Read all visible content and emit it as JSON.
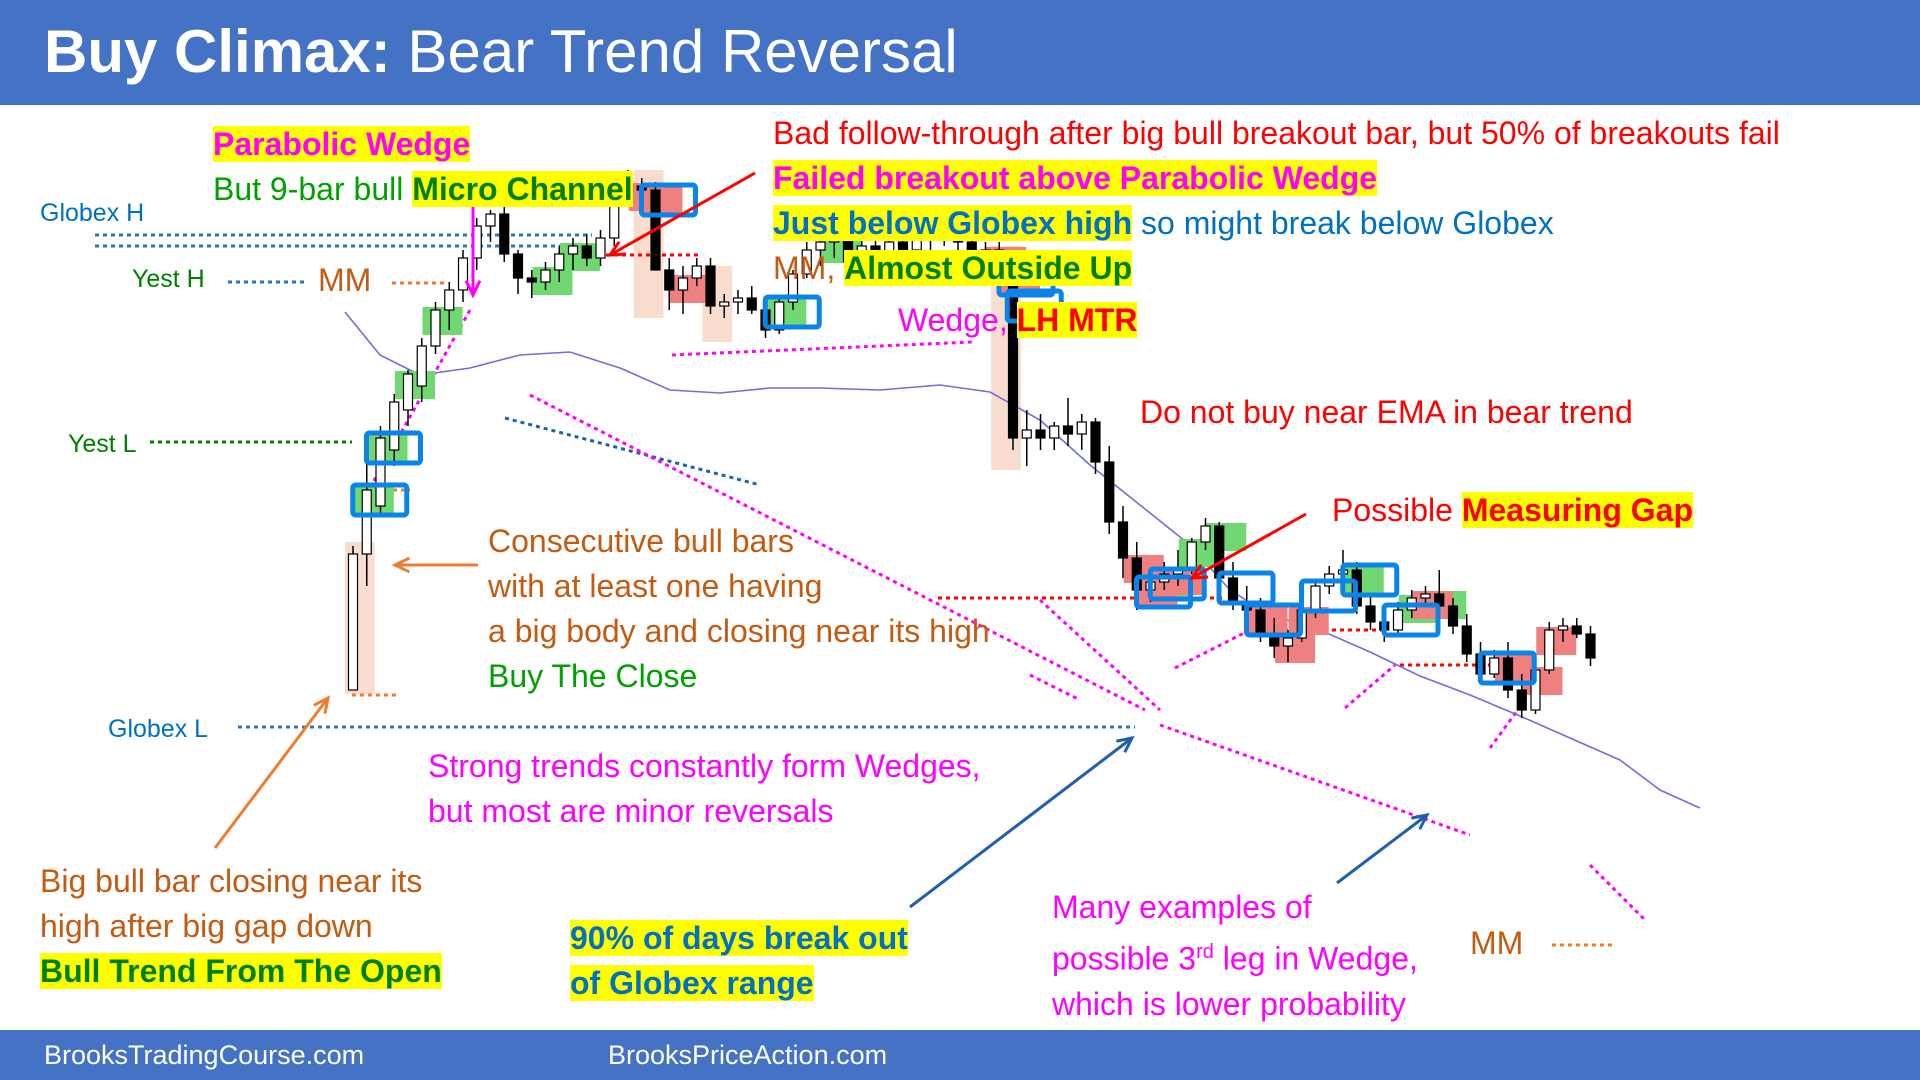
{
  "header": {
    "title_bold": "Buy Climax:",
    "title_rest": " Bear Trend Reversal"
  },
  "footer": {
    "left": "BrooksTradingCourse.com",
    "right": "BrooksPriceAction.com"
  },
  "levels": {
    "globex_h": "Globex H",
    "yest_h": "Yest H",
    "yest_l": "Yest L",
    "globex_l": "Globex L",
    "mm_top": "MM",
    "mm_bottom": "MM"
  },
  "annotations": {
    "parabolic_wedge": "Parabolic Wedge",
    "micro_channel_pre": "But 9-bar bull ",
    "micro_channel_hl": "Micro Channel",
    "bad_follow": "Bad follow-through after big bull breakout bar, but 50% of breakouts fail",
    "failed_breakout": "Failed breakout above Parabolic Wedge",
    "globex_high_hl": "Just below Globex high",
    "globex_high_rest": " so might break below Globex",
    "mm_pre": "MM, ",
    "almost_outside": "Almost Outside Up",
    "wedge_pre": "Wedge, ",
    "lh_mtr": "LH MTR",
    "do_not_buy": "Do not buy near EMA in bear trend",
    "possible_pre": "Possible ",
    "measuring_gap": "Measuring Gap",
    "consecutive_1": "Consecutive bull bars",
    "consecutive_2": "with at least one having",
    "consecutive_3": "a big body and closing near its high",
    "buy_the_close": "Buy The Close",
    "strong_trends_1": "Strong trends constantly form Wedges,",
    "strong_trends_2": "but most are minor reversals",
    "big_bull_1": "Big bull bar closing near its",
    "big_bull_2": "high after big gap down",
    "bull_trend_open": "Bull Trend From The Open",
    "ninety_1": "90% of days break out",
    "ninety_2": "of Globex range",
    "many_1": "Many examples of",
    "many_2_pre": "possible 3",
    "many_2_sup": "rd",
    "many_2_post": " leg in Wedge,",
    "many_3": "which is lower probability"
  },
  "colors": {
    "header_bg": "#4472c4",
    "bull_marker": "#70d870",
    "bear_marker": "#f08080",
    "box_outline": "#0b84ea",
    "ema": "#6f6fd8",
    "wedge_line": "#ff00ff",
    "highlight": "#ffff00"
  },
  "chart_data": {
    "type": "candlestick",
    "y_axis": "price (unlabeled)",
    "bars": [
      {
        "o": 0.0,
        "h": 0.36,
        "l": 0.0,
        "c": 0.34
      },
      {
        "o": 0.34,
        "h": 0.58,
        "l": 0.26,
        "c": 0.5
      },
      {
        "o": 0.46,
        "h": 0.66,
        "l": 0.44,
        "c": 0.63
      },
      {
        "o": 0.6,
        "h": 0.74,
        "l": 0.56,
        "c": 0.72
      },
      {
        "o": 0.7,
        "h": 0.8,
        "l": 0.66,
        "c": 0.79
      },
      {
        "o": 0.76,
        "h": 0.88,
        "l": 0.72,
        "c": 0.86
      },
      {
        "o": 0.86,
        "h": 0.97,
        "l": 0.84,
        "c": 0.95
      },
      {
        "o": 0.95,
        "h": 1.02,
        "l": 0.9,
        "c": 1.0
      },
      {
        "o": 1.0,
        "h": 1.1,
        "l": 0.97,
        "c": 1.08
      },
      {
        "o": 1.08,
        "h": 1.18,
        "l": 1.05,
        "c": 1.16
      },
      {
        "o": 1.16,
        "h": 1.2,
        "l": 1.12,
        "c": 1.19
      },
      {
        "o": 1.19,
        "h": 1.22,
        "l": 1.07,
        "c": 1.09
      },
      {
        "o": 1.09,
        "h": 1.1,
        "l": 0.99,
        "c": 1.03
      },
      {
        "o": 1.03,
        "h": 1.05,
        "l": 0.98,
        "c": 1.02
      },
      {
        "o": 1.02,
        "h": 1.07,
        "l": 1.0,
        "c": 1.05
      },
      {
        "o": 1.05,
        "h": 1.11,
        "l": 1.02,
        "c": 1.09
      },
      {
        "o": 1.09,
        "h": 1.13,
        "l": 1.05,
        "c": 1.11
      },
      {
        "o": 1.11,
        "h": 1.14,
        "l": 1.06,
        "c": 1.08
      },
      {
        "o": 1.08,
        "h": 1.15,
        "l": 1.06,
        "c": 1.13
      },
      {
        "o": 1.13,
        "h": 1.29,
        "l": 1.11,
        "c": 1.27
      },
      {
        "o": 1.27,
        "h": 1.3,
        "l": 1.24,
        "c": 1.26
      },
      {
        "o": 1.26,
        "h": 1.28,
        "l": 1.22,
        "c": 1.25
      },
      {
        "o": 1.25,
        "h": 1.27,
        "l": 1.05,
        "c": 1.05
      },
      {
        "o": 1.05,
        "h": 1.08,
        "l": 0.95,
        "c": 1.0
      },
      {
        "o": 1.0,
        "h": 1.06,
        "l": 0.94,
        "c": 1.03
      },
      {
        "o": 1.03,
        "h": 1.08,
        "l": 1.01,
        "c": 1.06
      },
      {
        "o": 1.06,
        "h": 1.08,
        "l": 0.94,
        "c": 0.96
      },
      {
        "o": 0.96,
        "h": 0.99,
        "l": 0.93,
        "c": 0.97
      },
      {
        "o": 0.97,
        "h": 1.0,
        "l": 0.94,
        "c": 0.98
      },
      {
        "o": 0.98,
        "h": 1.01,
        "l": 0.94,
        "c": 0.95
      },
      {
        "o": 0.95,
        "h": 0.97,
        "l": 0.88,
        "c": 0.9
      },
      {
        "o": 0.9,
        "h": 0.98,
        "l": 0.89,
        "c": 0.97
      },
      {
        "o": 0.97,
        "h": 1.05,
        "l": 0.95,
        "c": 1.04
      },
      {
        "o": 1.04,
        "h": 1.12,
        "l": 1.03,
        "c": 1.1
      },
      {
        "o": 1.1,
        "h": 1.14,
        "l": 1.06,
        "c": 1.12
      },
      {
        "o": 1.12,
        "h": 1.15,
        "l": 1.08,
        "c": 1.13
      },
      {
        "o": 1.13,
        "h": 1.16,
        "l": 1.06,
        "c": 1.07
      },
      {
        "o": 1.07,
        "h": 1.13,
        "l": 1.05,
        "c": 1.11
      },
      {
        "o": 1.11,
        "h": 1.14,
        "l": 1.07,
        "c": 1.08
      },
      {
        "o": 1.08,
        "h": 1.13,
        "l": 1.06,
        "c": 1.12
      },
      {
        "o": 1.12,
        "h": 1.15,
        "l": 1.09,
        "c": 1.1
      },
      {
        "o": 1.1,
        "h": 1.14,
        "l": 1.07,
        "c": 1.13
      },
      {
        "o": 1.13,
        "h": 1.16,
        "l": 1.1,
        "c": 1.14
      },
      {
        "o": 1.14,
        "h": 1.15,
        "l": 1.11,
        "c": 1.13
      },
      {
        "o": 1.13,
        "h": 1.16,
        "l": 1.1,
        "c": 1.12
      },
      {
        "o": 1.12,
        "h": 1.14,
        "l": 1.06,
        "c": 1.07
      },
      {
        "o": 1.07,
        "h": 1.12,
        "l": 1.05,
        "c": 1.1
      },
      {
        "o": 1.1,
        "h": 1.12,
        "l": 1.04,
        "c": 1.05
      },
      {
        "o": 1.05,
        "h": 1.09,
        "l": 0.6,
        "c": 0.63
      },
      {
        "o": 0.63,
        "h": 0.7,
        "l": 0.56,
        "c": 0.65
      },
      {
        "o": 0.65,
        "h": 0.69,
        "l": 0.6,
        "c": 0.63
      },
      {
        "o": 0.63,
        "h": 0.67,
        "l": 0.6,
        "c": 0.66
      },
      {
        "o": 0.66,
        "h": 0.73,
        "l": 0.61,
        "c": 0.64
      },
      {
        "o": 0.64,
        "h": 0.69,
        "l": 0.6,
        "c": 0.67
      },
      {
        "o": 0.67,
        "h": 0.68,
        "l": 0.54,
        "c": 0.57
      },
      {
        "o": 0.57,
        "h": 0.61,
        "l": 0.39,
        "c": 0.42
      },
      {
        "o": 0.42,
        "h": 0.46,
        "l": 0.28,
        "c": 0.33
      },
      {
        "o": 0.33,
        "h": 0.37,
        "l": 0.2,
        "c": 0.25
      },
      {
        "o": 0.25,
        "h": 0.3,
        "l": 0.22,
        "c": 0.27
      },
      {
        "o": 0.27,
        "h": 0.32,
        "l": 0.25,
        "c": 0.29
      },
      {
        "o": 0.29,
        "h": 0.35,
        "l": 0.26,
        "c": 0.3
      },
      {
        "o": 0.3,
        "h": 0.38,
        "l": 0.29,
        "c": 0.37
      },
      {
        "o": 0.37,
        "h": 0.43,
        "l": 0.35,
        "c": 0.41
      },
      {
        "o": 0.41,
        "h": 0.42,
        "l": 0.26,
        "c": 0.28
      },
      {
        "o": 0.28,
        "h": 0.32,
        "l": 0.2,
        "c": 0.22
      },
      {
        "o": 0.22,
        "h": 0.26,
        "l": 0.17,
        "c": 0.2
      },
      {
        "o": 0.2,
        "h": 0.23,
        "l": 0.12,
        "c": 0.14
      },
      {
        "o": 0.14,
        "h": 0.18,
        "l": 0.08,
        "c": 0.11
      },
      {
        "o": 0.11,
        "h": 0.15,
        "l": 0.07,
        "c": 0.13
      },
      {
        "o": 0.13,
        "h": 0.22,
        "l": 0.12,
        "c": 0.2
      },
      {
        "o": 0.2,
        "h": 0.27,
        "l": 0.18,
        "c": 0.26
      },
      {
        "o": 0.26,
        "h": 0.31,
        "l": 0.24,
        "c": 0.29
      },
      {
        "o": 0.29,
        "h": 0.35,
        "l": 0.27,
        "c": 0.3
      },
      {
        "o": 0.3,
        "h": 0.32,
        "l": 0.19,
        "c": 0.21
      },
      {
        "o": 0.21,
        "h": 0.24,
        "l": 0.15,
        "c": 0.17
      },
      {
        "o": 0.17,
        "h": 0.2,
        "l": 0.12,
        "c": 0.15
      },
      {
        "o": 0.15,
        "h": 0.22,
        "l": 0.14,
        "c": 0.2
      },
      {
        "o": 0.2,
        "h": 0.25,
        "l": 0.18,
        "c": 0.23
      },
      {
        "o": 0.23,
        "h": 0.26,
        "l": 0.21,
        "c": 0.24
      },
      {
        "o": 0.24,
        "h": 0.3,
        "l": 0.2,
        "c": 0.21
      },
      {
        "o": 0.21,
        "h": 0.23,
        "l": 0.14,
        "c": 0.16
      },
      {
        "o": 0.16,
        "h": 0.19,
        "l": 0.07,
        "c": 0.09
      },
      {
        "o": 0.09,
        "h": 0.12,
        "l": 0.02,
        "c": 0.04
      },
      {
        "o": 0.04,
        "h": 0.1,
        "l": 0.03,
        "c": 0.08
      },
      {
        "o": 0.08,
        "h": 0.12,
        "l": -0.02,
        "c": 0.0
      },
      {
        "o": 0.0,
        "h": 0.04,
        "l": -0.07,
        "c": -0.05
      },
      {
        "o": -0.05,
        "h": 0.06,
        "l": -0.06,
        "c": 0.05
      },
      {
        "o": 0.05,
        "h": 0.17,
        "l": 0.04,
        "c": 0.15
      },
      {
        "o": 0.15,
        "h": 0.18,
        "l": 0.12,
        "c": 0.16
      },
      {
        "o": 0.16,
        "h": 0.18,
        "l": 0.13,
        "c": 0.14
      },
      {
        "o": 0.14,
        "h": 0.16,
        "l": 0.06,
        "c": 0.08
      }
    ],
    "levels": [
      "Globex H",
      "Yest H",
      "Yest L",
      "Globex L"
    ]
  }
}
